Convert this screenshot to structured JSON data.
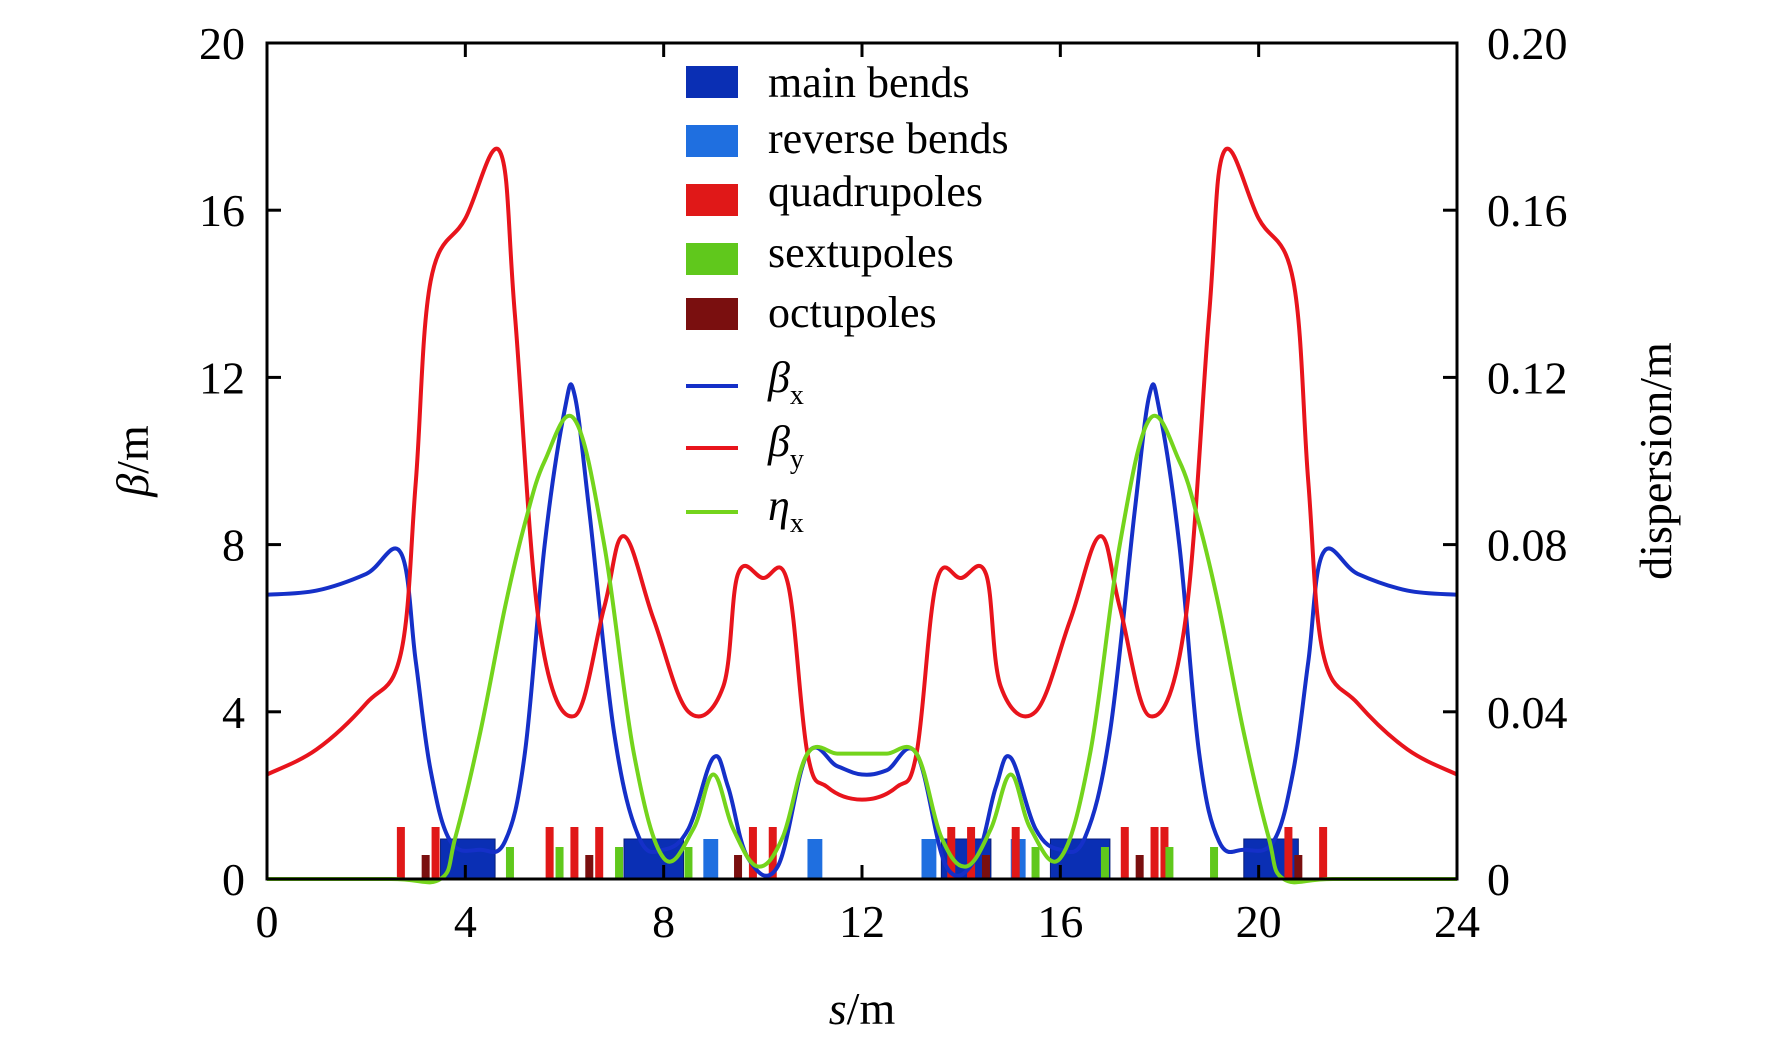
{
  "chart_data": {
    "type": "line",
    "xlabel": {
      "italic": "s",
      "rest": "/m"
    },
    "ylabel": {
      "italic": "β",
      "rest": "/m"
    },
    "y2label": "dispersion/m",
    "xlim": [
      0,
      24
    ],
    "ylim": [
      0,
      20
    ],
    "y2lim": [
      0,
      0.2
    ],
    "x_ticks": [
      "0",
      "4",
      "8",
      "12",
      "16",
      "20",
      "24"
    ],
    "y_ticks": [
      "0",
      "4",
      "8",
      "12",
      "16",
      "20"
    ],
    "y2_ticks": [
      "0",
      "0.04",
      "0.08",
      "0.12",
      "0.16",
      "0.20"
    ],
    "grid": false,
    "legend_position": "top-center",
    "colors": {
      "main_bends": "#0a2fb4",
      "reverse_bends": "#1f6fe0",
      "quadrupoles": "#e01818",
      "sextupoles": "#60c81c",
      "octupoles": "#7a0f0f",
      "beta_x": "#1530c8",
      "beta_y": "#e8141c",
      "eta_x": "#74d41c"
    },
    "legend": {
      "elements": [
        {
          "label": "main bends",
          "color_key": "main_bends"
        },
        {
          "label": "reverse bends",
          "color_key": "reverse_bends"
        },
        {
          "label": "quadrupoles",
          "color_key": "quadrupoles"
        },
        {
          "label": "sextupoles",
          "color_key": "sextupoles"
        },
        {
          "label": "octupoles",
          "color_key": "octupoles"
        }
      ],
      "lines": [
        {
          "symbol": "β",
          "sub": "x",
          "color_key": "beta_x"
        },
        {
          "symbol": "β",
          "sub": "y",
          "color_key": "beta_y"
        },
        {
          "symbol": "η",
          "sub": "x",
          "color_key": "eta_x"
        }
      ]
    },
    "series": [
      {
        "name": "beta_x",
        "axis": "left",
        "color_key": "beta_x",
        "x": [
          0,
          1,
          2,
          2.7,
          3.0,
          3.3,
          3.7,
          4.3,
          4.8,
          5.2,
          5.6,
          6.0,
          6.2,
          6.5,
          7.0,
          7.5,
          8.0,
          8.5,
          9.0,
          9.3,
          9.7,
          10.3,
          10.9,
          11.5,
          12.0,
          12.5,
          13.1,
          13.7,
          14.3,
          14.7,
          15.0,
          15.5,
          16.0,
          16.5,
          17.0,
          17.5,
          17.8,
          18.0,
          18.4,
          18.8,
          19.2,
          19.7,
          20.3,
          20.7,
          21.0,
          21.3,
          22,
          23,
          24
        ],
        "y": [
          6.8,
          6.9,
          7.3,
          7.8,
          5.2,
          2.6,
          0.9,
          0.7,
          0.9,
          3.0,
          8.0,
          11.2,
          11.6,
          8.8,
          3.5,
          1.0,
          0.7,
          1.2,
          2.9,
          2.2,
          0.5,
          0.3,
          3.0,
          2.7,
          2.5,
          2.6,
          3.0,
          0.3,
          0.5,
          2.2,
          2.9,
          1.2,
          0.7,
          1.0,
          3.5,
          8.8,
          11.6,
          11.2,
          8.0,
          3.0,
          0.9,
          0.7,
          0.9,
          2.6,
          5.2,
          7.8,
          7.3,
          6.9,
          6.8
        ]
      },
      {
        "name": "beta_y",
        "axis": "left",
        "color_key": "beta_y",
        "x": [
          0,
          1,
          2,
          2.7,
          3.0,
          3.3,
          4.0,
          4.7,
          5.0,
          5.5,
          6.2,
          6.8,
          7.2,
          7.8,
          8.5,
          9.2,
          9.5,
          10.0,
          10.5,
          10.9,
          11.3,
          12.0,
          12.7,
          13.1,
          13.5,
          14.0,
          14.5,
          14.8,
          15.5,
          16.2,
          16.8,
          17.2,
          17.8,
          18.5,
          19.0,
          19.3,
          20.0,
          20.7,
          21.0,
          21.3,
          22,
          23,
          24
        ],
        "y": [
          2.5,
          3.1,
          4.2,
          5.4,
          9.5,
          14.3,
          15.8,
          17.4,
          13.5,
          6.0,
          3.9,
          6.5,
          8.2,
          6.2,
          4.0,
          4.6,
          7.3,
          7.2,
          7.1,
          3.0,
          2.2,
          1.9,
          2.2,
          3.0,
          7.1,
          7.2,
          7.3,
          4.6,
          4.0,
          6.2,
          8.2,
          6.5,
          3.9,
          6.0,
          13.5,
          17.4,
          15.8,
          14.3,
          9.5,
          5.4,
          4.2,
          3.1,
          2.5
        ]
      },
      {
        "name": "eta_x",
        "axis": "right",
        "color_key": "eta_x",
        "x": [
          0,
          2.5,
          3.5,
          3.8,
          4.3,
          4.8,
          5.2,
          5.6,
          6.2,
          6.8,
          7.4,
          8.0,
          8.6,
          9.0,
          9.4,
          9.9,
          10.4,
          10.9,
          11.5,
          12.0,
          12.5,
          13.1,
          13.6,
          14.1,
          14.6,
          15.0,
          15.4,
          16.0,
          16.6,
          17.2,
          17.8,
          18.4,
          18.8,
          19.2,
          19.7,
          20.2,
          20.5,
          21.5,
          24
        ],
        "y": [
          0,
          0,
          0.0,
          0.01,
          0.035,
          0.065,
          0.085,
          0.1,
          0.11,
          0.08,
          0.03,
          0.005,
          0.012,
          0.025,
          0.012,
          0.003,
          0.01,
          0.03,
          0.03,
          0.03,
          0.03,
          0.03,
          0.01,
          0.003,
          0.012,
          0.025,
          0.012,
          0.005,
          0.03,
          0.08,
          0.11,
          0.1,
          0.085,
          0.065,
          0.035,
          0.01,
          0.0,
          0,
          0
        ]
      }
    ],
    "lattice_elements": {
      "main_bends": [
        [
          3.5,
          4.6
        ],
        [
          7.2,
          8.4
        ],
        [
          13.6,
          14.6
        ],
        [
          15.8,
          17.0
        ],
        [
          19.7,
          20.8
        ]
      ],
      "reverse_bends": [
        [
          8.8,
          9.1
        ],
        [
          10.9,
          11.2
        ],
        [
          13.2,
          13.5
        ],
        [
          15.0,
          15.3
        ]
      ],
      "quadrupoles": [
        2.7,
        3.4,
        5.7,
        6.2,
        6.7,
        9.8,
        10.2,
        13.8,
        14.2,
        15.1,
        17.3,
        17.9,
        18.1,
        20.6,
        21.3
      ],
      "sextupoles": [
        4.9,
        5.9,
        7.1,
        8.5,
        15.5,
        16.9,
        18.2,
        19.1
      ],
      "octupoles": [
        3.2,
        6.5,
        9.5,
        14.5,
        17.6,
        20.8
      ]
    }
  }
}
